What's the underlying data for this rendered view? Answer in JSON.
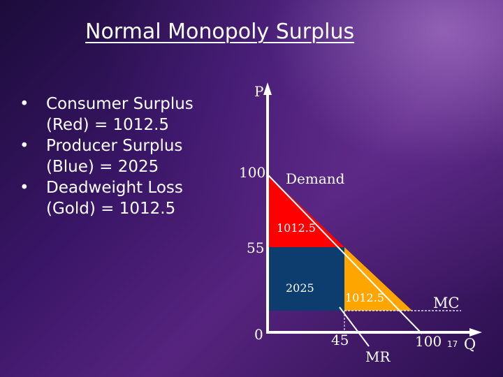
{
  "title": "Normal Monopoly Surplus",
  "bullets": [
    {
      "line1": "Consumer Surplus",
      "line2": "(Red) = 1012.5"
    },
    {
      "line1": "Producer Surplus",
      "line2": "(Blue) = 2025"
    },
    {
      "line1": "Deadweight Loss",
      "line2": "(Gold) = 1012.5"
    }
  ],
  "bullet_symbol": "•",
  "diagram": {
    "axis_p_label": "P",
    "axis_q_label": "Q",
    "origin_label": "0",
    "price_high_label": "100",
    "price_mid_label": "55",
    "qty_mid_label": "45",
    "qty_high_label": "100",
    "demand_label": "Demand",
    "mr_label": "MR",
    "mc_label": "MC",
    "consumer_surplus_value": "1012.5",
    "producer_surplus_value": "2025",
    "deadweight_loss_value": "1012.5",
    "colors": {
      "consumer_surplus": "#ff0000",
      "producer_surplus": "#0d3d6e",
      "deadweight_loss": "#ffa500",
      "lines": "#ffffff"
    }
  },
  "slide_number": "17"
}
